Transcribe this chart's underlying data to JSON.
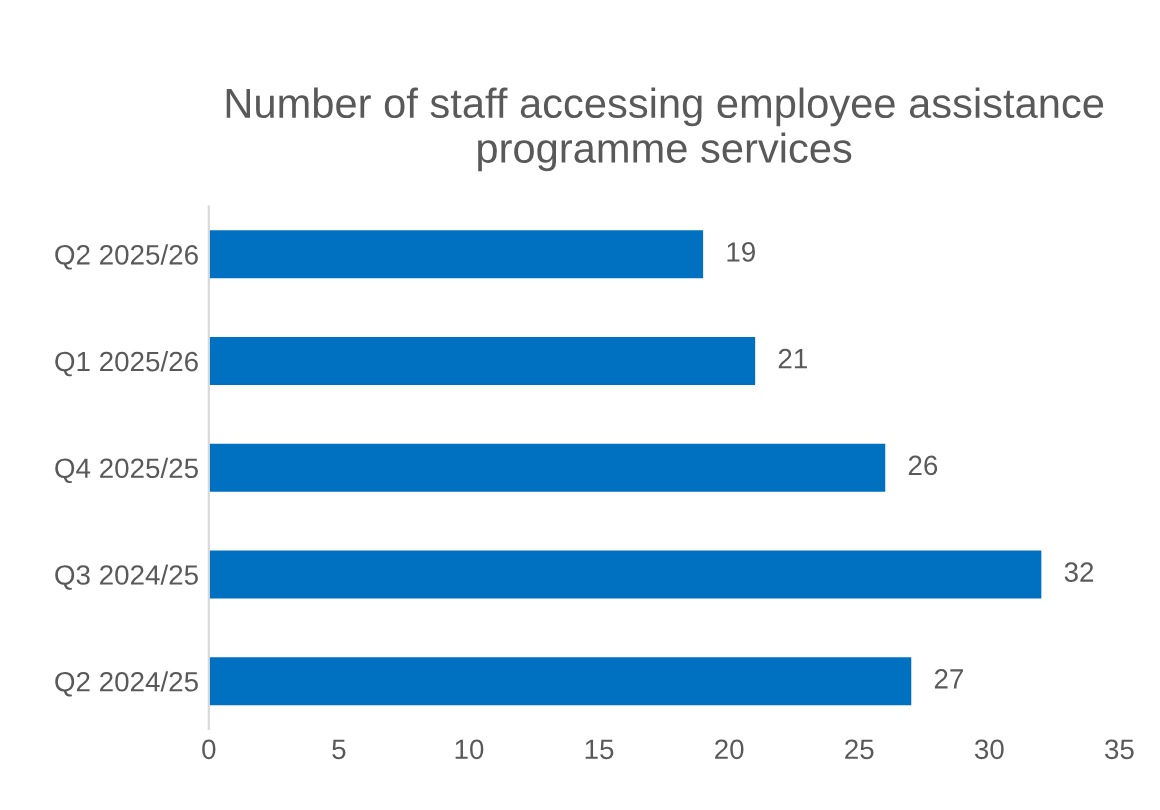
{
  "chart_data": {
    "type": "bar",
    "orientation": "horizontal",
    "title": "Number of staff accessing employee assistance programme services",
    "categories": [
      "Q2 2025/26",
      "Q1 2025/26",
      "Q4 2025/25",
      "Q3 2024/25",
      "Q2 2024/25"
    ],
    "values": [
      19,
      21,
      26,
      32,
      27
    ],
    "color": "#0070c0",
    "xlim": [
      0,
      35
    ],
    "xticks": [
      0,
      5,
      10,
      15,
      20,
      25,
      30,
      35
    ],
    "grid": false,
    "data_labels": true
  }
}
